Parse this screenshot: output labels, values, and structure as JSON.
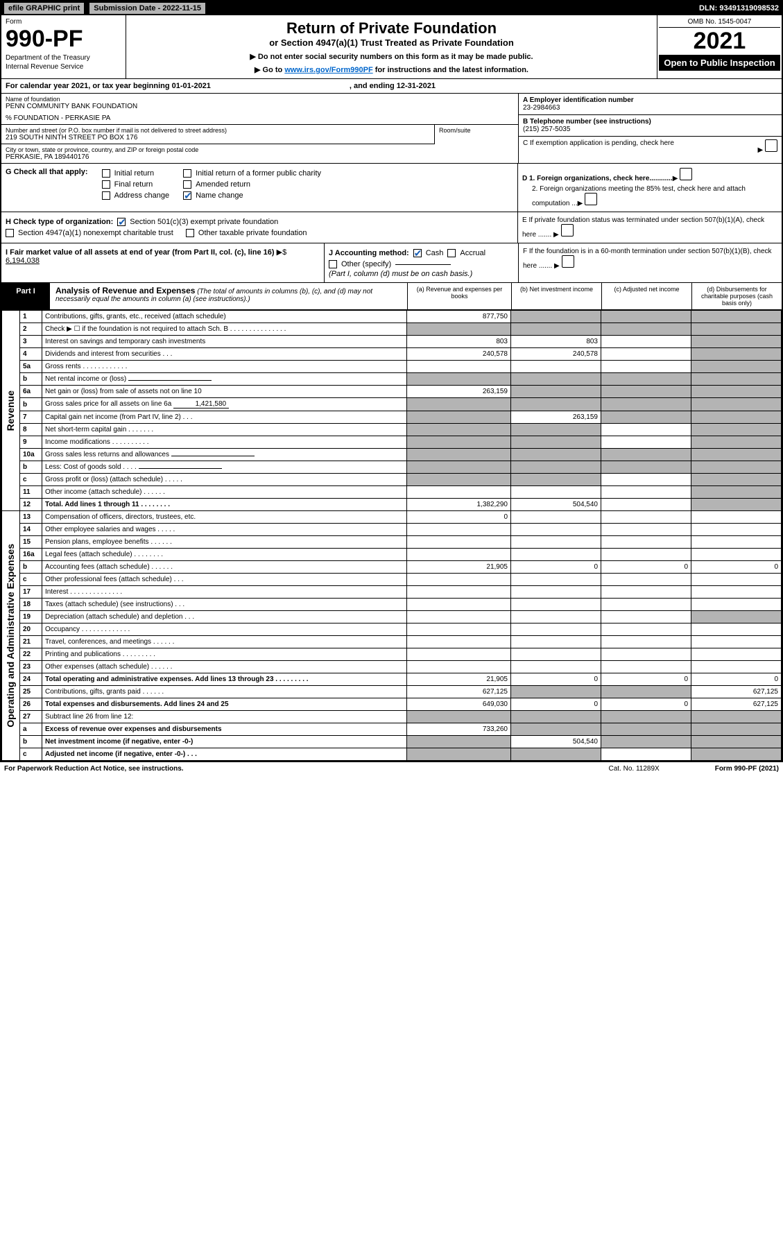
{
  "topbar": {
    "efile": "efile GRAPHIC print",
    "submission_label": "Submission Date - 2022-11-15",
    "dln": "DLN: 93491319098532"
  },
  "header": {
    "form_label": "Form",
    "form_number": "990-PF",
    "dept": "Department of the Treasury",
    "irs": "Internal Revenue Service",
    "title": "Return of Private Foundation",
    "subtitle": "or Section 4947(a)(1) Trust Treated as Private Foundation",
    "note1": "▶ Do not enter social security numbers on this form as it may be made public.",
    "note2_pre": "▶ Go to ",
    "note2_link": "www.irs.gov/Form990PF",
    "note2_post": " for instructions and the latest information.",
    "omb": "OMB No. 1545-0047",
    "year": "2021",
    "open": "Open to Public Inspection"
  },
  "calendar": {
    "text": "For calendar year 2021, or tax year beginning 01-01-2021",
    "ending": ", and ending 12-31-2021"
  },
  "foundation": {
    "name_label": "Name of foundation",
    "name": "PENN COMMUNITY BANK FOUNDATION",
    "care_of": "% FOUNDATION - PERKASIE PA",
    "addr_label": "Number and street (or P.O. box number if mail is not delivered to street address)",
    "addr": "219 SOUTH NINTH STREET PO BOX 176",
    "room_label": "Room/suite",
    "city_label": "City or town, state or province, country, and ZIP or foreign postal code",
    "city": "PERKASIE, PA  189440176"
  },
  "right_info": {
    "a_label": "A Employer identification number",
    "a_val": "23-2984663",
    "b_label": "B Telephone number (see instructions)",
    "b_val": "(215) 257-5035",
    "c_label": "C If exemption application is pending, check here",
    "d1": "D 1. Foreign organizations, check here............",
    "d2": "2. Foreign organizations meeting the 85% test, check here and attach computation ...",
    "e": "E  If private foundation status was terminated under section 507(b)(1)(A), check here .......",
    "f": "F  If the foundation is in a 60-month termination under section 507(b)(1)(B), check here .......",
    "arrow": "▶"
  },
  "g": {
    "label": "G Check all that apply:",
    "opts": [
      "Initial return",
      "Final return",
      "Address change",
      "Initial return of a former public charity",
      "Amended return",
      "Name change"
    ]
  },
  "h": {
    "label": "H Check type of organization:",
    "opt1": "Section 501(c)(3) exempt private foundation",
    "opt2": "Section 4947(a)(1) nonexempt charitable trust",
    "opt3": "Other taxable private foundation"
  },
  "i": {
    "label": "I Fair market value of all assets at end of year (from Part II, col. (c), line 16)",
    "val": "6,194,038",
    "arrow": "▶$"
  },
  "j": {
    "label": "J Accounting method:",
    "cash": "Cash",
    "accrual": "Accrual",
    "other": "Other (specify)",
    "note": "(Part I, column (d) must be on cash basis.)"
  },
  "part1": {
    "tab": "Part I",
    "title": "Analysis of Revenue and Expenses",
    "note": "(The total of amounts in columns (b), (c), and (d) may not necessarily equal the amounts in column (a) (see instructions).)",
    "col_a": "(a) Revenue and expenses per books",
    "col_b": "(b) Net investment income",
    "col_c": "(c) Adjusted net income",
    "col_d": "(d) Disbursements for charitable purposes (cash basis only)"
  },
  "sections": {
    "revenue": "Revenue",
    "expenses": "Operating and Administrative Expenses"
  },
  "rows": [
    {
      "n": "1",
      "desc": "Contributions, gifts, grants, etc., received (attach schedule)",
      "a": "877,750",
      "b": "",
      "c": "",
      "d": "",
      "grey": [
        "b",
        "c",
        "d"
      ]
    },
    {
      "n": "2",
      "desc": "Check ▶ ☐ if the foundation is not required to attach Sch. B   .  .  .  .  .  .  .  .  .  .  .  .  .  .  .",
      "a": "",
      "b": "",
      "c": "",
      "d": "",
      "grey": [
        "a",
        "b",
        "c",
        "d"
      ],
      "bold_not": true
    },
    {
      "n": "3",
      "desc": "Interest on savings and temporary cash investments",
      "a": "803",
      "b": "803",
      "c": "",
      "d": "",
      "grey": [
        "d"
      ]
    },
    {
      "n": "4",
      "desc": "Dividends and interest from securities  .  .  .",
      "a": "240,578",
      "b": "240,578",
      "c": "",
      "d": "",
      "grey": [
        "d"
      ]
    },
    {
      "n": "5a",
      "desc": "Gross rents   .  .  .  .  .  .  .  .  .  .  .  .",
      "a": "",
      "b": "",
      "c": "",
      "d": "",
      "grey": [
        "d"
      ]
    },
    {
      "n": "b",
      "desc": "Net rental income or (loss)",
      "a": "",
      "b": "",
      "c": "",
      "d": "",
      "grey": [
        "a",
        "b",
        "c",
        "d"
      ],
      "inline": true
    },
    {
      "n": "6a",
      "desc": "Net gain or (loss) from sale of assets not on line 10",
      "a": "263,159",
      "b": "",
      "c": "",
      "d": "",
      "grey": [
        "b",
        "c",
        "d"
      ]
    },
    {
      "n": "b",
      "desc": "Gross sales price for all assets on line 6a",
      "a": "",
      "b": "",
      "c": "",
      "d": "",
      "grey": [
        "a",
        "b",
        "c",
        "d"
      ],
      "inline_val": "1,421,580"
    },
    {
      "n": "7",
      "desc": "Capital gain net income (from Part IV, line 2)   .  .  .",
      "a": "",
      "b": "263,159",
      "c": "",
      "d": "",
      "grey": [
        "a",
        "c",
        "d"
      ]
    },
    {
      "n": "8",
      "desc": "Net short-term capital gain  .  .  .  .  .  .  .",
      "a": "",
      "b": "",
      "c": "",
      "d": "",
      "grey": [
        "a",
        "b",
        "d"
      ]
    },
    {
      "n": "9",
      "desc": "Income modifications .  .  .  .  .  .  .  .  .  .",
      "a": "",
      "b": "",
      "c": "",
      "d": "",
      "grey": [
        "a",
        "b",
        "d"
      ]
    },
    {
      "n": "10a",
      "desc": "Gross sales less returns and allowances",
      "a": "",
      "b": "",
      "c": "",
      "d": "",
      "grey": [
        "a",
        "b",
        "c",
        "d"
      ],
      "inline": true
    },
    {
      "n": "b",
      "desc": "Less: Cost of goods sold   .  .  .  .",
      "a": "",
      "b": "",
      "c": "",
      "d": "",
      "grey": [
        "a",
        "b",
        "c",
        "d"
      ],
      "inline": true
    },
    {
      "n": "c",
      "desc": "Gross profit or (loss) (attach schedule)   .  .  .  .  .",
      "a": "",
      "b": "",
      "c": "",
      "d": "",
      "grey": [
        "a",
        "b",
        "d"
      ]
    },
    {
      "n": "11",
      "desc": "Other income (attach schedule)   .  .  .  .  .  .",
      "a": "",
      "b": "",
      "c": "",
      "d": "",
      "grey": [
        "d"
      ]
    },
    {
      "n": "12",
      "desc": "Total. Add lines 1 through 11  .  .  .  .  .  .  .  .",
      "a": "1,382,290",
      "b": "504,540",
      "c": "",
      "d": "",
      "grey": [
        "d"
      ],
      "bold": true
    },
    {
      "n": "13",
      "desc": "Compensation of officers, directors, trustees, etc.",
      "a": "0",
      "b": "",
      "c": "",
      "d": ""
    },
    {
      "n": "14",
      "desc": "Other employee salaries and wages  .  .  .  .  .",
      "a": "",
      "b": "",
      "c": "",
      "d": ""
    },
    {
      "n": "15",
      "desc": "Pension plans, employee benefits .  .  .  .  .  .",
      "a": "",
      "b": "",
      "c": "",
      "d": ""
    },
    {
      "n": "16a",
      "desc": "Legal fees (attach schedule) .  .  .  .  .  .  .  .",
      "a": "",
      "b": "",
      "c": "",
      "d": ""
    },
    {
      "n": "b",
      "desc": "Accounting fees (attach schedule) .  .  .  .  .  .",
      "a": "21,905",
      "b": "0",
      "c": "0",
      "d": "0"
    },
    {
      "n": "c",
      "desc": "Other professional fees (attach schedule)   .  .  .",
      "a": "",
      "b": "",
      "c": "",
      "d": ""
    },
    {
      "n": "17",
      "desc": "Interest  .  .  .  .  .  .  .  .  .  .  .  .  .  .",
      "a": "",
      "b": "",
      "c": "",
      "d": ""
    },
    {
      "n": "18",
      "desc": "Taxes (attach schedule) (see instructions)   .  .  .",
      "a": "",
      "b": "",
      "c": "",
      "d": ""
    },
    {
      "n": "19",
      "desc": "Depreciation (attach schedule) and depletion   .  .  .",
      "a": "",
      "b": "",
      "c": "",
      "d": "",
      "grey": [
        "d"
      ]
    },
    {
      "n": "20",
      "desc": "Occupancy .  .  .  .  .  .  .  .  .  .  .  .  .",
      "a": "",
      "b": "",
      "c": "",
      "d": ""
    },
    {
      "n": "21",
      "desc": "Travel, conferences, and meetings .  .  .  .  .  .",
      "a": "",
      "b": "",
      "c": "",
      "d": ""
    },
    {
      "n": "22",
      "desc": "Printing and publications .  .  .  .  .  .  .  .  .",
      "a": "",
      "b": "",
      "c": "",
      "d": ""
    },
    {
      "n": "23",
      "desc": "Other expenses (attach schedule) .  .  .  .  .  .",
      "a": "",
      "b": "",
      "c": "",
      "d": ""
    },
    {
      "n": "24",
      "desc": "Total operating and administrative expenses. Add lines 13 through 23  .  .  .  .  .  .  .  .  .",
      "a": "21,905",
      "b": "0",
      "c": "0",
      "d": "0",
      "bold": true
    },
    {
      "n": "25",
      "desc": "Contributions, gifts, grants paid   .  .  .  .  .  .",
      "a": "627,125",
      "b": "",
      "c": "",
      "d": "627,125",
      "grey": [
        "b",
        "c"
      ]
    },
    {
      "n": "26",
      "desc": "Total expenses and disbursements. Add lines 24 and 25",
      "a": "649,030",
      "b": "0",
      "c": "0",
      "d": "627,125",
      "bold": true
    },
    {
      "n": "27",
      "desc": "Subtract line 26 from line 12:",
      "a": "",
      "b": "",
      "c": "",
      "d": "",
      "grey": [
        "a",
        "b",
        "c",
        "d"
      ]
    },
    {
      "n": "a",
      "desc": "Excess of revenue over expenses and disbursements",
      "a": "733,260",
      "b": "",
      "c": "",
      "d": "",
      "grey": [
        "b",
        "c",
        "d"
      ],
      "bold": true
    },
    {
      "n": "b",
      "desc": "Net investment income (if negative, enter -0-)",
      "a": "",
      "b": "504,540",
      "c": "",
      "d": "",
      "grey": [
        "a",
        "c",
        "d"
      ],
      "bold": true
    },
    {
      "n": "c",
      "desc": "Adjusted net income (if negative, enter -0-)   .  .  .",
      "a": "",
      "b": "",
      "c": "",
      "d": "",
      "grey": [
        "a",
        "b",
        "d"
      ],
      "bold": true
    }
  ],
  "footer": {
    "pra": "For Paperwork Reduction Act Notice, see instructions.",
    "cat": "Cat. No. 11289X",
    "form": "Form 990-PF (2021)"
  }
}
